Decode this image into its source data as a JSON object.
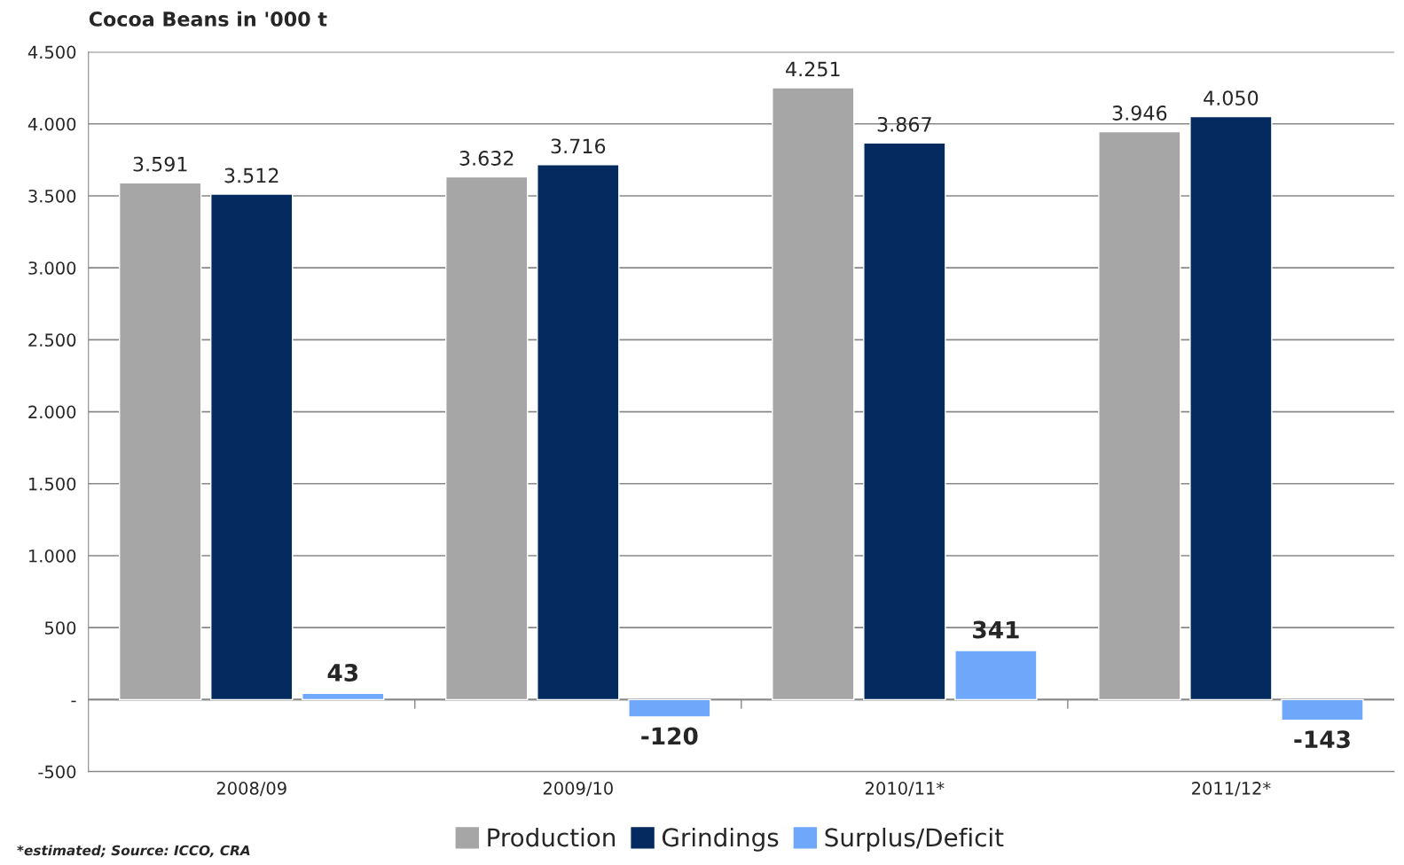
{
  "chart_data": {
    "type": "bar",
    "title": "Cocoa Beans in '000 t",
    "categories": [
      "2008/09",
      "2009/10",
      "2010/11*",
      "2011/12*"
    ],
    "series": [
      {
        "name": "Production",
        "color": "#a6a6a6",
        "values": [
          3591,
          3632,
          4251,
          3946
        ],
        "value_labels": [
          "3.591",
          "3.632",
          "4.251",
          "3.946"
        ]
      },
      {
        "name": "Grindings",
        "color": "#042a60",
        "values": [
          3512,
          3716,
          3867,
          4050
        ],
        "value_labels": [
          "3.512",
          "3.716",
          "3.867",
          "4.050"
        ]
      },
      {
        "name": "Surplus/Deficit",
        "color": "#6fa8fa",
        "values": [
          43,
          -120,
          341,
          -143
        ],
        "value_labels": [
          "43",
          "-120",
          "341",
          "-143"
        ]
      }
    ],
    "ylim": [
      -500,
      4500
    ],
    "yticks": [
      -500,
      {
        "value": 0,
        "label": "-"
      },
      {
        "value": 500,
        "label": "500"
      },
      {
        "value": 1000,
        "label": "1.000"
      },
      {
        "value": 1500,
        "label": "1.500"
      },
      {
        "value": 2000,
        "label": "2.000"
      },
      {
        "value": 2500,
        "label": "2.500"
      },
      {
        "value": 3000,
        "label": "3.000"
      },
      {
        "value": 3500,
        "label": "3.500"
      },
      {
        "value": 4000,
        "label": "4.000"
      },
      {
        "value": 4500,
        "label": "4.500"
      }
    ],
    "grid": "y",
    "legend": "bottom",
    "annotations": [
      "*estimated; Source: ICCO, CRA"
    ]
  }
}
